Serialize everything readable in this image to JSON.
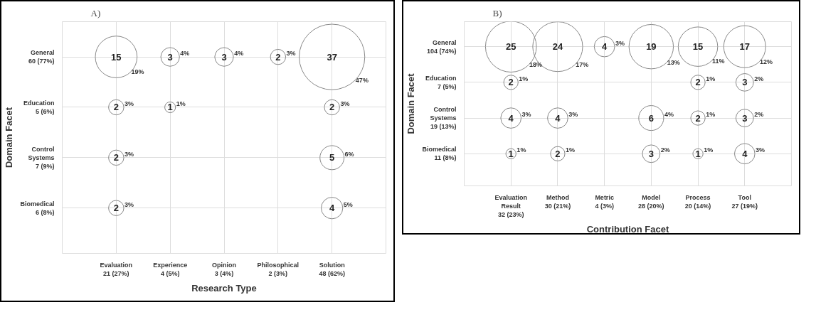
{
  "chart_data": [
    {
      "type": "heatmap",
      "title": "A)",
      "xlabel": "Research Type",
      "ylabel": "Domain Facet",
      "categories": [
        "Evaluation\n21 (27%)",
        "Experience\n4 (5%)",
        "Opinion\n3 (4%)",
        "Philosophical\n2 (3%)",
        "Solution\n48 (62%)"
      ],
      "y_categories": [
        "General\n60 (77%)",
        "Education\n5 (6%)",
        "Control\nSystems\n7 (9%)",
        "Biomedical\n6 (8%)"
      ],
      "cells": [
        [
          15,
          3,
          3,
          2,
          37
        ],
        [
          2,
          1,
          null,
          null,
          2
        ],
        [
          2,
          null,
          null,
          null,
          5
        ],
        [
          2,
          null,
          null,
          null,
          4
        ]
      ],
      "annotations": [
        "19%",
        {
          "text": "4%",
          "x": "Experience\n4 (5%)",
          "y": "General\n60 (77%)"
        },
        {
          "text": "4%",
          "x": "Opinion\n3 (4%)",
          "y": "General\n60 (77%)"
        },
        {
          "text": "3%",
          "x": "Philosophical\n2 (3%)",
          "y": "General\n60 (77%)"
        },
        "47%",
        {
          "text": "3%",
          "x": "Evaluation\n21 (27%)",
          "y": "Education\n5 (6%)"
        },
        {
          "text": "1%",
          "x": "Experience\n4 (5%)",
          "y": "Education\n5 (6%)"
        },
        {
          "text": "3%",
          "x": "Solution\n48 (62%)",
          "y": "Education\n5 (6%)"
        },
        {
          "text": "3%",
          "x": "Evaluation\n21 (27%)",
          "y": "Control\nSystems\n7 (9%)"
        },
        {
          "text": "6%",
          "x": "Solution\n48 (62%)",
          "y": "Control\nSystems\n7 (9%)"
        },
        {
          "text": "3%",
          "x": "Evaluation\n21 (27%)",
          "y": "Biomedical\n6 (8%)"
        },
        {
          "text": "5%",
          "x": "Solution\n48 (62%)",
          "y": "Biomedical\n6 (8%)"
        }
      ],
      "data_labels": true,
      "grid": true,
      "marker": "circle"
    },
    {
      "type": "heatmap",
      "title": "B)",
      "xlabel": "Contribution Facet",
      "ylabel": "Domain Facet",
      "categories": [
        "Evaluation\nResult\n32 (23%)",
        "Method\n30 (21%)",
        "Metric\n4 (3%)",
        "Model\n28 (20%)",
        "Process\n20 (14%)",
        "Tool\n27 (19%)"
      ],
      "y_categories": [
        "General\n104 (74%)",
        "Education\n7 (5%)",
        "Control\nSystems\n19 (13%)",
        "Biomedical\n11 (8%)"
      ],
      "cells": [
        [
          25,
          24,
          4,
          19,
          15,
          17
        ],
        [
          2,
          null,
          null,
          null,
          2,
          3
        ],
        [
          4,
          4,
          null,
          6,
          2,
          3
        ],
        [
          1,
          2,
          null,
          3,
          1,
          4
        ]
      ],
      "annotations": [
        "18%",
        "17%",
        {
          "text": "3%",
          "x": "Metric\n4 (3%)",
          "y": "General\n104 (74%)"
        },
        "13%",
        "11%",
        "12%",
        {
          "text": "1%",
          "x": "Evaluation\nResult\n32 (23%)",
          "y": "Education\n7 (5%)"
        },
        {
          "text": "1%",
          "x": "Process\n20 (14%)",
          "y": "Education\n7 (5%)"
        },
        {
          "text": "2%",
          "x": "Tool\n27 (19%)",
          "y": "Education\n7 (5%)"
        },
        {
          "text": "3%",
          "x": "Evaluation\nResult\n32 (23%)",
          "y": "Control\nSystems\n19 (13%)"
        },
        {
          "text": "3%",
          "x": "Method\n30 (21%)",
          "y": "Control\nSystems\n19 (13%)"
        },
        {
          "text": "4%",
          "x": "Model\n28 (20%)",
          "y": "Control\nSystems\n19 (13%)"
        },
        {
          "text": "1%",
          "x": "Process\n20 (14%)",
          "y": "Control\nSystems\n19 (13%)"
        },
        {
          "text": "2%",
          "x": "Tool\n27 (19%)",
          "y": "Control\nSystems\n19 (13%)"
        },
        {
          "text": "1%",
          "x": "Evaluation\nResult\n32 (23%)",
          "y": "Biomedical\n11 (8%)"
        },
        {
          "text": "1%",
          "x": "Method\n30 (21%)",
          "y": "Biomedical\n11 (8%)"
        },
        {
          "text": "2%",
          "x": "Model\n28 (20%)",
          "y": "Biomedical\n11 (8%)"
        },
        {
          "text": "1%",
          "x": "Process\n20 (14%)",
          "y": "Biomedical\n11 (8%)"
        },
        {
          "text": "3%",
          "x": "Tool\n27 (19%)",
          "y": "Biomedical\n11 (8%)"
        }
      ],
      "data_labels": true,
      "grid": true,
      "marker": "circle"
    }
  ]
}
